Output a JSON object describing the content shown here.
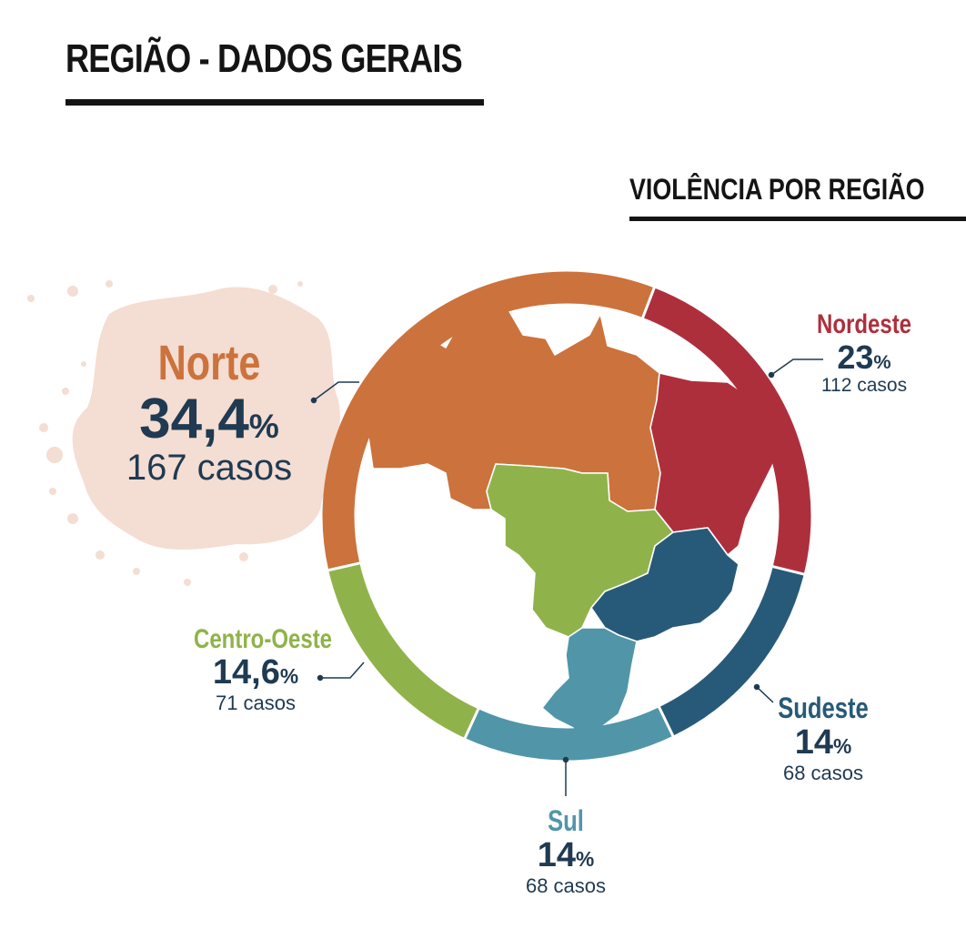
{
  "title": "REGIÃO - DADOS GERAIS",
  "subtitle": "VIOLÊNCIA POR REGIÃO",
  "colors": {
    "norte": "#cc723c",
    "nordeste": "#ae2f3c",
    "sudeste": "#275a78",
    "sul": "#5096a8",
    "centro_oeste": "#8fb34a",
    "splash": "#f4ddd2",
    "text_dark": "#1f3a52"
  },
  "chart_data": {
    "type": "pie",
    "title": "VIOLÊNCIA POR REGIÃO",
    "series": [
      {
        "name": "Norte",
        "percent_label": "34,4",
        "percent": 34.4,
        "cases_label": "167 casos",
        "cases": 167
      },
      {
        "name": "Nordeste",
        "percent_label": "23",
        "percent": 23,
        "cases_label": "112 casos",
        "cases": 112
      },
      {
        "name": "Sudeste",
        "percent_label": "14",
        "percent": 14,
        "cases_label": "68 casos",
        "cases": 68
      },
      {
        "name": "Sul",
        "percent_label": "14",
        "percent": 14,
        "cases_label": "68 casos",
        "cases": 68
      },
      {
        "name": "Centro-Oeste",
        "percent_label": "14,6",
        "percent": 14.6,
        "cases_label": "71 casos",
        "cases": 71
      }
    ],
    "percent_sign": "%"
  }
}
